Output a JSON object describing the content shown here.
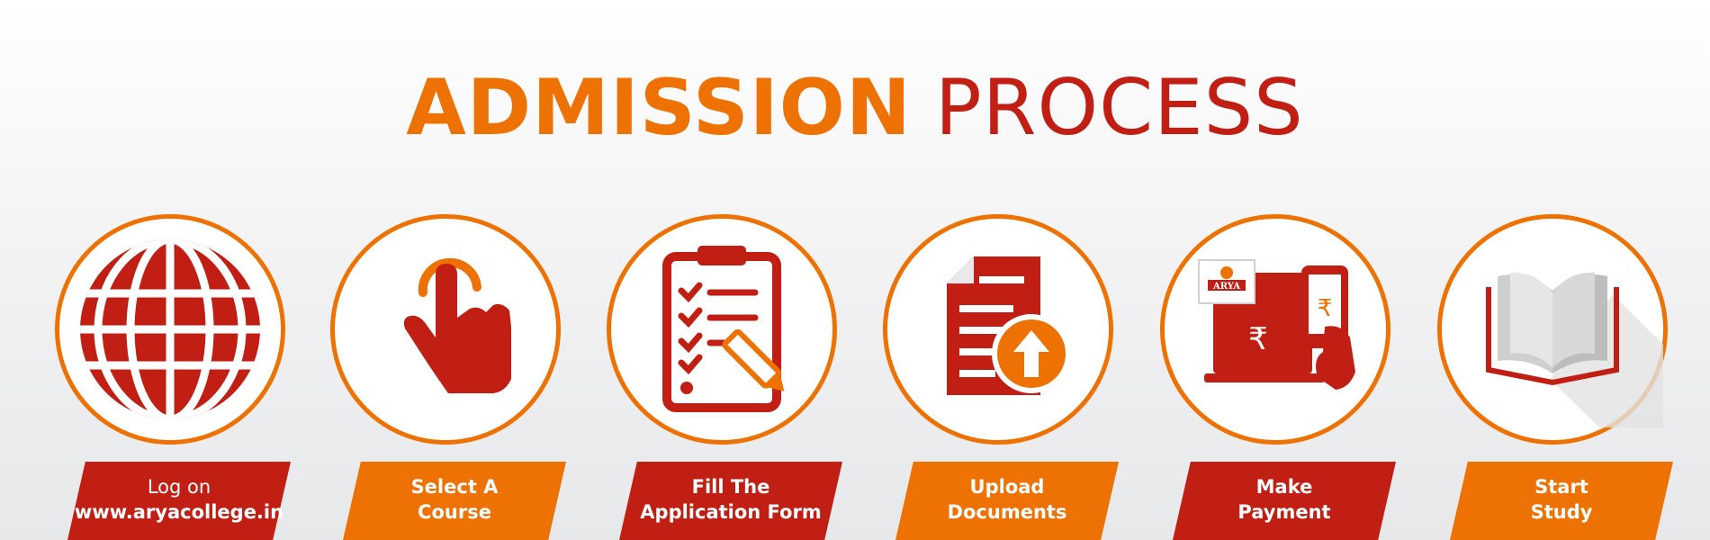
{
  "title": {
    "part1": "ADMISSION",
    "part2": "PROCESS"
  },
  "logo": {
    "text": "ARYA"
  },
  "currency_symbol": "₹",
  "colors": {
    "orange": "#ee7203",
    "red": "#c11f14",
    "white": "#ffffff",
    "gray": "#c8c8c8"
  },
  "steps": [
    {
      "icon": "globe-icon",
      "line1": "Log on",
      "line2": "www.aryacollege.in",
      "tag_color": "red"
    },
    {
      "icon": "tap-hand-icon",
      "line1": "Select A",
      "line2": "Course",
      "tag_color": "orange"
    },
    {
      "icon": "clipboard-checklist-icon",
      "line1": "Fill The",
      "line2": "Application Form",
      "tag_color": "red"
    },
    {
      "icon": "document-upload-icon",
      "line1": "Upload",
      "line2": "Documents",
      "tag_color": "orange"
    },
    {
      "icon": "online-payment-icon",
      "line1": "Make",
      "line2": "Payment",
      "tag_color": "red"
    },
    {
      "icon": "open-book-icon",
      "line1": "Start",
      "line2": "Study",
      "tag_color": "orange"
    }
  ]
}
